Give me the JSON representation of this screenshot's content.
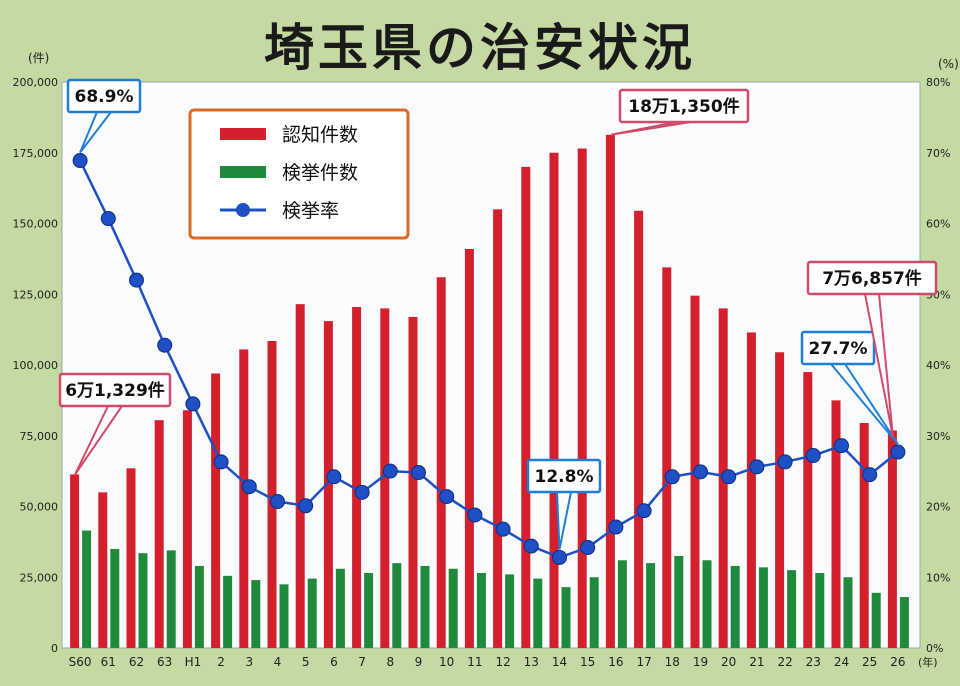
{
  "title": "埼玉県の治安状況",
  "colors": {
    "background": "#c5d9a2",
    "plot_area": "#fafbfd",
    "recognized": "#d3202c",
    "cleared": "#1f8a3c",
    "rate": "#1f4fc4",
    "legend_border": "#d86a2a",
    "callout_red": "#d24a6a",
    "callout_blue": "#1f7fd8"
  },
  "legend": [
    {
      "key": "recognized",
      "label": "認知件数"
    },
    {
      "key": "cleared",
      "label": "検挙件数"
    },
    {
      "key": "rate",
      "label": "検挙率"
    }
  ],
  "callouts": {
    "s60_rate": "68.9%",
    "s60_count": "6万1,329件",
    "h16_count": "18万1,350件",
    "h14_rate": "12.8%",
    "h26_rate": "27.7%",
    "h26_count": "7万6,857件"
  },
  "chart_data": {
    "type": "bar",
    "title": "埼玉県の治安状況",
    "categories": [
      "S60",
      "61",
      "62",
      "63",
      "H1",
      "2",
      "3",
      "4",
      "5",
      "6",
      "7",
      "8",
      "9",
      "10",
      "11",
      "12",
      "13",
      "14",
      "15",
      "16",
      "17",
      "18",
      "19",
      "20",
      "21",
      "22",
      "23",
      "24",
      "25",
      "26"
    ],
    "x_unit": "(年)",
    "y_left": {
      "unit": "(件)",
      "ylim": [
        0,
        200000
      ],
      "ticks": [
        "0",
        "25,000",
        "50,000",
        "75,000",
        "100,000",
        "125,000",
        "150,000",
        "175,000",
        "200,000"
      ]
    },
    "y_right": {
      "unit": "(%)",
      "ylim": [
        0,
        80
      ],
      "ticks": [
        "0%",
        "10%",
        "20%",
        "30%",
        "40%",
        "50%",
        "60%",
        "70%",
        "80%"
      ]
    },
    "grid": false,
    "legend_position": "top-left",
    "series": [
      {
        "name": "認知件数",
        "axis": "left",
        "type": "bar",
        "values": [
          61329,
          55000,
          63500,
          80500,
          84000,
          97000,
          105500,
          108500,
          121500,
          115500,
          120500,
          120000,
          117000,
          131000,
          141000,
          155000,
          170000,
          175000,
          176500,
          181350,
          154500,
          134500,
          124500,
          120000,
          111500,
          104500,
          97500,
          87500,
          79500,
          76857
        ]
      },
      {
        "name": "検挙件数",
        "axis": "left",
        "type": "bar",
        "values": [
          41500,
          35000,
          33500,
          34500,
          29000,
          25500,
          24000,
          22500,
          24500,
          28000,
          26500,
          30000,
          29000,
          28000,
          26500,
          26000,
          24500,
          21500,
          25000,
          31000,
          30000,
          32500,
          31000,
          29000,
          28500,
          27500,
          26500,
          25000,
          19500,
          18000
        ]
      },
      {
        "name": "検挙率",
        "axis": "right",
        "type": "line",
        "values": [
          68.9,
          60.7,
          52.0,
          42.8,
          34.5,
          26.3,
          22.8,
          20.7,
          20.1,
          24.2,
          22.0,
          25.0,
          24.8,
          21.4,
          18.8,
          16.8,
          14.4,
          12.8,
          14.2,
          17.1,
          19.4,
          24.2,
          24.9,
          24.2,
          25.6,
          26.3,
          27.2,
          28.6,
          24.5,
          27.7
        ]
      }
    ]
  }
}
